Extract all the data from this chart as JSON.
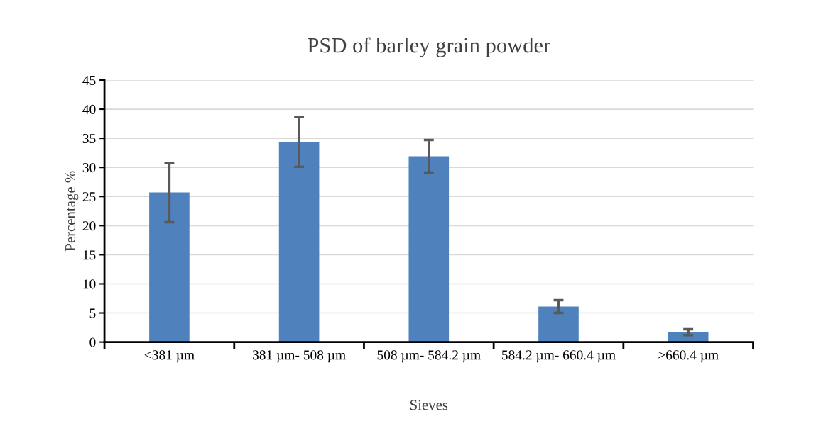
{
  "chart_data": {
    "type": "bar",
    "title": "PSD of barley grain powder",
    "xlabel": "Sieves",
    "ylabel": "Percentage %",
    "categories": [
      "<381 µm",
      "381 µm- 508 µm",
      "508 µm- 584.2 µm",
      "584.2 µm- 660.4 µm",
      ">660.4 µm"
    ],
    "values": [
      25.7,
      34.4,
      31.9,
      6.1,
      1.7
    ],
    "errors": [
      5.1,
      4.3,
      2.8,
      1.1,
      0.5
    ],
    "color": "#4f81bd",
    "ylim": [
      0,
      45
    ],
    "yticks": [
      0,
      5,
      10,
      15,
      20,
      25,
      30,
      35,
      40,
      45
    ],
    "grid": "y"
  }
}
